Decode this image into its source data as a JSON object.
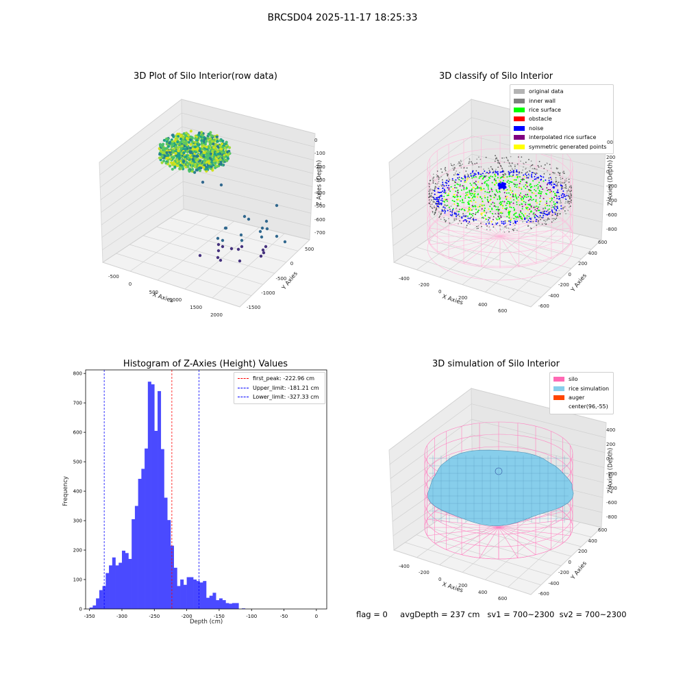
{
  "suptitle": "BRCSD04 2025-11-17 18:25:33",
  "status": {
    "flag": "flag = 0",
    "avg_depth": "avgDepth = 237 cm",
    "sv1": "sv1 = 700~2300",
    "sv2": "sv2 = 700~2300"
  },
  "chart_data": [
    {
      "type": "scatter",
      "title": "3D Plot of Silo Interior(row data)",
      "xlabel": "X Axies",
      "ylabel": "Y Axies",
      "zlabel": "Z Axies (Depth)",
      "xticks": [
        "-500",
        "0",
        "500",
        "1000",
        "1500",
        "2000"
      ],
      "yticks": [
        "500",
        "0",
        "-500",
        "-1000",
        "-1500"
      ],
      "zticks": [
        "0",
        "-100",
        "-200",
        "-300",
        "-400",
        "-500",
        "-600",
        "-700"
      ],
      "colormap": "viridis"
    },
    {
      "type": "scatter",
      "title": "3D classify of Silo Interior",
      "xlabel": "X Axies",
      "ylabel": "Y Axies",
      "zlabel": "Z Axies (Depth)",
      "xticks": [
        "-400",
        "-200",
        "0",
        "200",
        "400",
        "600"
      ],
      "yticks": [
        "600",
        "400",
        "200",
        "0",
        "-200",
        "-400",
        "-600"
      ],
      "zticks": [
        "200",
        "0",
        "-200",
        "-400",
        "-600",
        "-800"
      ],
      "zticks_partial": "00",
      "legend": [
        {
          "label": "original data",
          "color": "#b4b4b4"
        },
        {
          "label": "inner wall",
          "color": "#808080"
        },
        {
          "label": "rice surface",
          "color": "#00ff00"
        },
        {
          "label": "obstacle",
          "color": "#ff0000"
        },
        {
          "label": "noise",
          "color": "#0000ff"
        },
        {
          "label": "interpolated rice surface",
          "color": "#800080"
        },
        {
          "label": "symmetric generated points",
          "color": "#ffff00"
        }
      ]
    },
    {
      "type": "bar",
      "title": "Histogram of Z-Axies (Height) Values",
      "xlabel": "Depth (cm)",
      "ylabel": "Frequency",
      "xlim": [
        -356,
        16
      ],
      "ylim": [
        0,
        812
      ],
      "xticks": [
        -350,
        -300,
        -250,
        -200,
        -150,
        -100,
        -50,
        0
      ],
      "yticks": [
        0,
        100,
        200,
        300,
        400,
        500,
        600,
        700,
        800
      ],
      "bin_width": 5,
      "bin_start": -350,
      "values": [
        5,
        12,
        36,
        64,
        78,
        122,
        148,
        175,
        148,
        157,
        198,
        190,
        170,
        305,
        350,
        442,
        476,
        545,
        772,
        763,
        605,
        740,
        543,
        378,
        302,
        215,
        140,
        78,
        100,
        82,
        108,
        108,
        100,
        95,
        90,
        95,
        38,
        45,
        55,
        30,
        36,
        30,
        20,
        18,
        20,
        20,
        0,
        2
      ],
      "color": "#4a4aff",
      "vlines": [
        {
          "label": "first_peak: -222.96 cm",
          "x": -222.96,
          "color": "#ff0000"
        },
        {
          "label": "Upper_limit: -181.21 cm",
          "x": -181.21,
          "color": "#0000ff"
        },
        {
          "label": "Lower_limit: -327.33 cm",
          "x": -327.33,
          "color": "#0000ff"
        }
      ]
    },
    {
      "type": "scatter",
      "title": "3D simulation of Silo Interior",
      "xlabel": "X Axies",
      "ylabel": "Y Axies",
      "zlabel": "Z Axies (Depth)",
      "xticks": [
        "-400",
        "-200",
        "0",
        "200",
        "400",
        "600"
      ],
      "yticks": [
        "600",
        "400",
        "200",
        "0",
        "-200",
        "-400",
        "-600"
      ],
      "zticks": [
        "400",
        "200",
        "0",
        "-200",
        "-400",
        "-600",
        "-800"
      ],
      "legend": [
        {
          "label": "silo",
          "color": "#ff69b4"
        },
        {
          "label": "rice simulation",
          "color": "#87ceeb"
        },
        {
          "label": "auger",
          "color": "#ff4500"
        },
        {
          "label": "center(96,-55)",
          "color": "#ffffff"
        }
      ]
    }
  ]
}
